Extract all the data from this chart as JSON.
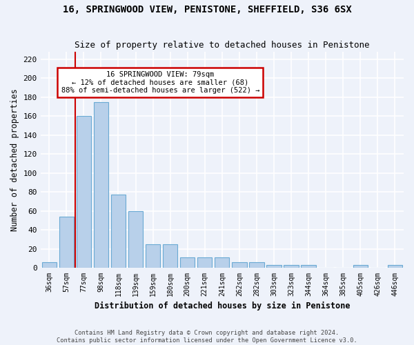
{
  "title": "16, SPRINGWOOD VIEW, PENISTONE, SHEFFIELD, S36 6SX",
  "subtitle": "Size of property relative to detached houses in Penistone",
  "xlabel": "Distribution of detached houses by size in Penistone",
  "ylabel": "Number of detached properties",
  "categories": [
    "36sqm",
    "57sqm",
    "77sqm",
    "98sqm",
    "118sqm",
    "139sqm",
    "159sqm",
    "180sqm",
    "200sqm",
    "221sqm",
    "241sqm",
    "262sqm",
    "282sqm",
    "303sqm",
    "323sqm",
    "344sqm",
    "364sqm",
    "385sqm",
    "405sqm",
    "426sqm",
    "446sqm"
  ],
  "values": [
    6,
    54,
    160,
    175,
    77,
    60,
    25,
    25,
    11,
    11,
    11,
    6,
    6,
    3,
    3,
    3,
    0,
    0,
    3,
    0,
    3
  ],
  "bar_color": "#b8d0ea",
  "bar_edge_color": "#6aaad4",
  "vline_index": 2,
  "vline_color": "#cc0000",
  "annotation_lines": [
    "16 SPRINGWOOD VIEW: 79sqm",
    "← 12% of detached houses are smaller (68)",
    "88% of semi-detached houses are larger (522) →"
  ],
  "annotation_box_facecolor": "#ffffff",
  "annotation_box_edgecolor": "#cc0000",
  "yticks": [
    0,
    20,
    40,
    60,
    80,
    100,
    120,
    140,
    160,
    180,
    200,
    220
  ],
  "ylim": [
    0,
    228
  ],
  "background_color": "#eef2fa",
  "grid_color": "#ffffff",
  "footer": "Contains HM Land Registry data © Crown copyright and database right 2024.\nContains public sector information licensed under the Open Government Licence v3.0."
}
